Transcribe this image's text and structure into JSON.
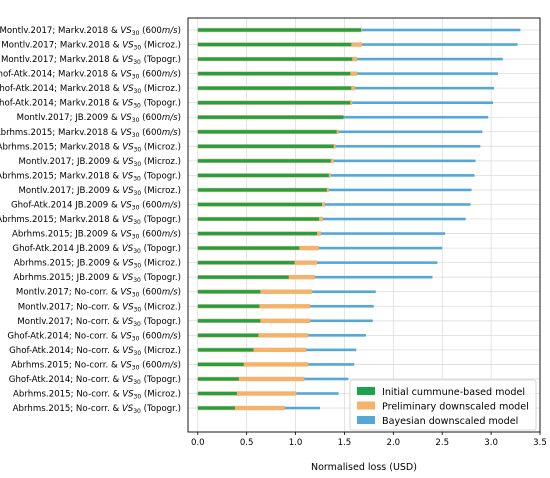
{
  "chart_data": {
    "type": "bar",
    "orientation": "horizontal",
    "xlabel": "Normalised loss (USD)",
    "xlim": [
      -0.1,
      3.5
    ],
    "xticks": [
      "0.0",
      "0.5",
      "1.0",
      "1.5",
      "2.0",
      "2.5",
      "3.0",
      "3.5"
    ],
    "grid": true,
    "legend_position": "bottom-right",
    "categories": [
      {
        "parts": [
          "Montlv.2017;",
          "Markv.2018 & ",
          "VS",
          "30",
          " (600",
          "m/s",
          ")"
        ]
      },
      {
        "parts": [
          "Montlv.2017;",
          "Markv.2018 & ",
          "VS",
          "30",
          " (Microz.)"
        ]
      },
      {
        "parts": [
          "Montlv.2017;",
          "Markv.2018 & ",
          "VS",
          "30",
          " (Topogr.)"
        ]
      },
      {
        "parts": [
          "Ghof-Atk.2014;",
          "Markv.2018 & ",
          "VS",
          "30",
          " (600",
          "m/s",
          ")"
        ]
      },
      {
        "parts": [
          "Ghof-Atk.2014;",
          "Markv.2018 & ",
          "VS",
          "30",
          " (Microz.)"
        ]
      },
      {
        "parts": [
          "Ghof-Atk.2014;",
          "Markv.2018 & ",
          "VS",
          "30",
          " (Topogr.)"
        ]
      },
      {
        "parts": [
          "Montlv.2017;",
          "JB.2009     & ",
          "VS",
          "30",
          " (600",
          "m/s",
          ")"
        ]
      },
      {
        "parts": [
          "Abrhms.2015;",
          "Markv.2018 & ",
          "VS",
          "30",
          " (600",
          "m/s",
          ")"
        ]
      },
      {
        "parts": [
          "Abrhms.2015;",
          "Markv.2018 & ",
          "VS",
          "30",
          " (Microz.)"
        ]
      },
      {
        "parts": [
          "Montlv.2017;",
          "JB.2009     & ",
          "VS",
          "30",
          " (Microz.)"
        ]
      },
      {
        "parts": [
          "Abrhms.2015;",
          "Markv.2018 & ",
          "VS",
          "30",
          " (Topogr.)"
        ]
      },
      {
        "parts": [
          "Montlv.2017;",
          "JB.2009     & ",
          "VS",
          "30",
          " (Microz.)"
        ]
      },
      {
        "parts": [
          "Ghof-Atk.2014",
          "JB.2009     & ",
          "VS",
          "30",
          " (600",
          "m/s",
          ")"
        ]
      },
      {
        "parts": [
          "Abrhms.2015;",
          "Markv.2018 & ",
          "VS",
          "30",
          " (Topogr.)"
        ]
      },
      {
        "parts": [
          "Abrhms.2015;",
          "JB.2009     & ",
          "VS",
          "30",
          " (600",
          "m/s",
          ")"
        ]
      },
      {
        "parts": [
          "Ghof-Atk.2014",
          "JB.2009     & ",
          "VS",
          "30",
          " (Topogr.)"
        ]
      },
      {
        "parts": [
          "Abrhms.2015;",
          "JB.2009     & ",
          "VS",
          "30",
          " (Microz.)"
        ]
      },
      {
        "parts": [
          "Abrhms.2015;",
          "JB.2009     & ",
          "VS",
          "30",
          " (Topogr.)"
        ]
      },
      {
        "parts": [
          "Montlv.2017;",
          "No-corr.    & ",
          "VS",
          "30",
          " (600",
          "m/s",
          ")"
        ]
      },
      {
        "parts": [
          "Montlv.2017;",
          "No-corr.    & ",
          "VS",
          "30",
          " (Microz.)"
        ]
      },
      {
        "parts": [
          "Montlv.2017;",
          "No-corr.    & ",
          "VS",
          "30",
          " (Topogr.)"
        ]
      },
      {
        "parts": [
          "Ghof-Atk.2014;",
          "No-corr.    & ",
          "VS",
          "30",
          " (600",
          "m/s",
          ")"
        ]
      },
      {
        "parts": [
          "Ghof-Atk.2014;",
          "No-corr.    & ",
          "VS",
          "30",
          " (Microz.)"
        ]
      },
      {
        "parts": [
          "Abrhms.2015;",
          "No-corr.    & ",
          "VS",
          "30",
          " (600",
          "m/s",
          ")"
        ]
      },
      {
        "parts": [
          "Ghof-Atk.2014;",
          "No-corr.    & ",
          "VS",
          "30",
          " (Topogr.)"
        ]
      },
      {
        "parts": [
          "Abrhms.2015;",
          "No-corr.    & ",
          "VS",
          "30",
          " (Microz.)"
        ]
      },
      {
        "parts": [
          "Abrhms.2015;",
          "No-corr.    & ",
          "VS",
          "30",
          " (Topogr.)"
        ]
      }
    ],
    "series": [
      {
        "name": "Initial cummune-based model",
        "color": "#1aa34a",
        "values": [
          1.67,
          1.57,
          1.58,
          1.56,
          1.57,
          1.56,
          1.49,
          1.42,
          1.39,
          1.36,
          1.34,
          1.32,
          1.27,
          1.24,
          1.22,
          1.04,
          0.99,
          0.93,
          0.64,
          0.63,
          0.64,
          0.62,
          0.57,
          0.47,
          0.42,
          0.4,
          0.38
        ]
      },
      {
        "name": "Preliminary downscaled model",
        "color": "#f5b26b",
        "values": [
          1.68,
          1.68,
          1.63,
          1.63,
          1.61,
          1.58,
          1.49,
          1.44,
          1.41,
          1.39,
          1.36,
          1.34,
          1.3,
          1.28,
          1.26,
          1.24,
          1.22,
          1.2,
          1.17,
          1.15,
          1.15,
          1.13,
          1.11,
          1.13,
          1.09,
          1.01,
          0.89
        ]
      },
      {
        "name": "Bayesian downscaled model",
        "color": "#53a8d8",
        "values": [
          3.3,
          3.27,
          3.12,
          3.07,
          3.03,
          3.02,
          2.97,
          2.91,
          2.89,
          2.84,
          2.83,
          2.8,
          2.79,
          2.74,
          2.53,
          2.5,
          2.45,
          2.4,
          1.82,
          1.8,
          1.79,
          1.72,
          1.62,
          1.6,
          1.54,
          1.44,
          1.25
        ]
      }
    ]
  }
}
